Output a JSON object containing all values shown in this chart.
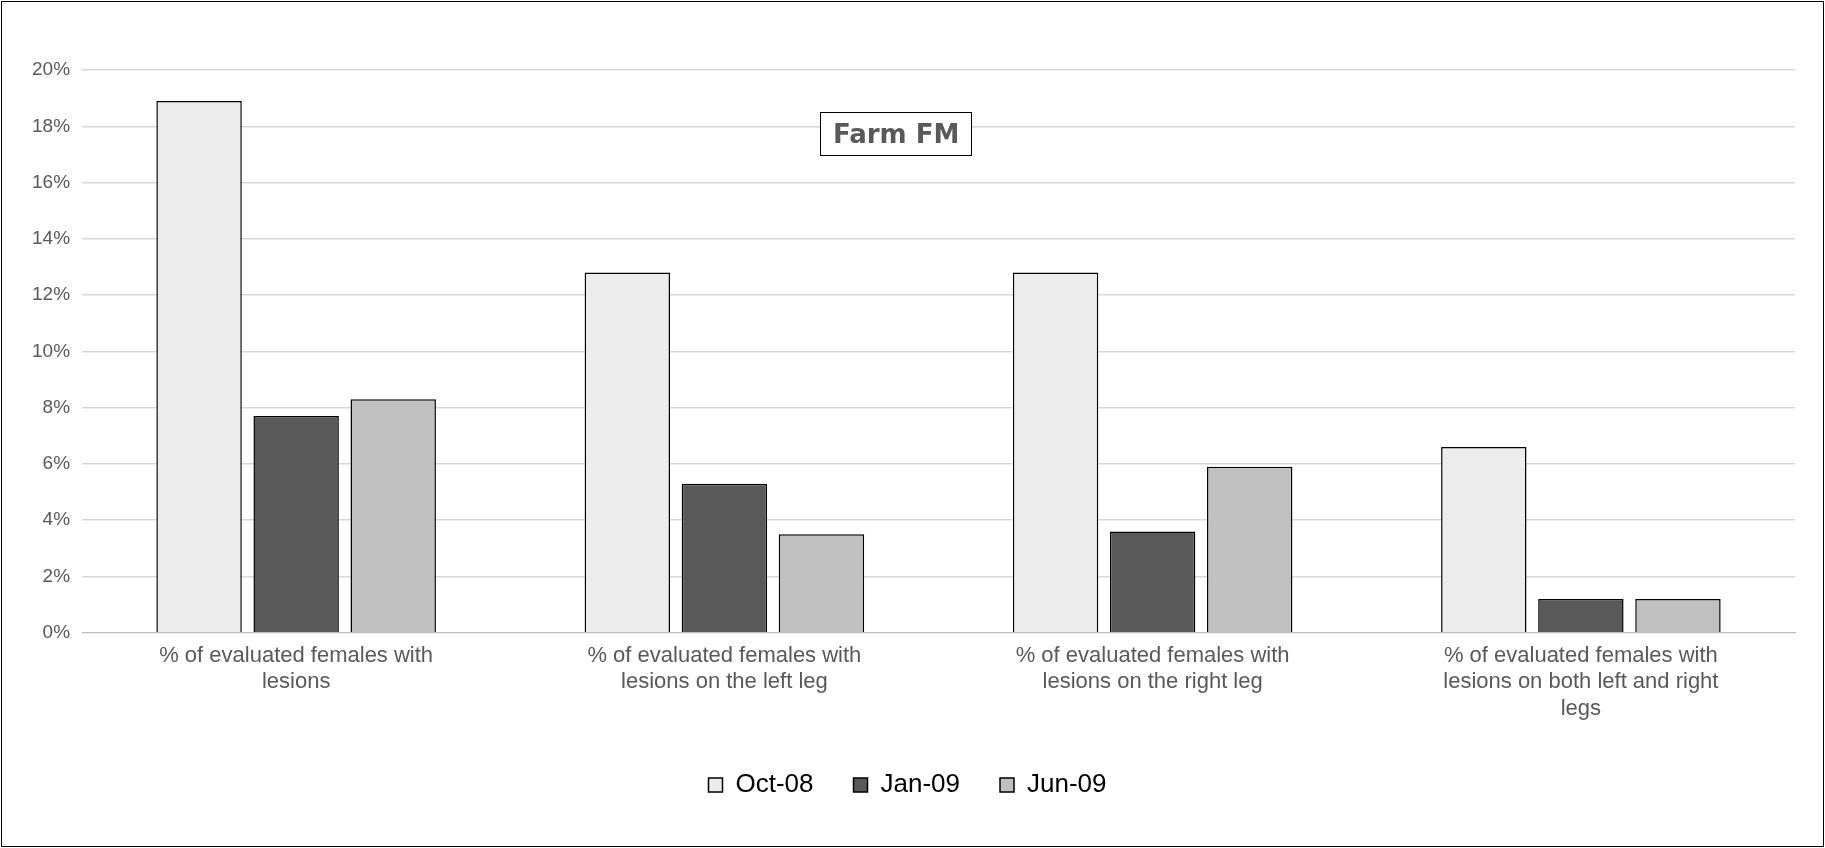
{
  "chart_data": {
    "type": "bar",
    "title": "Farm FM",
    "categories": [
      "% of evaluated females with lesions",
      "% of evaluated females with lesions on the left leg",
      "% of evaluated females with lesions on the right leg",
      "% of evaluated females with lesions on both left and right legs"
    ],
    "series": [
      {
        "name": "Oct-08",
        "color": "#ececec",
        "values": [
          18.9,
          12.8,
          12.8,
          6.6
        ]
      },
      {
        "name": "Jan-09",
        "color": "#595959",
        "values": [
          7.7,
          5.3,
          3.6,
          1.2
        ]
      },
      {
        "name": "Jun-09",
        "color": "#c0c0c0",
        "values": [
          8.3,
          3.5,
          5.9,
          1.2
        ]
      }
    ],
    "ylim": [
      0,
      20
    ],
    "yticks": [
      {
        "value": 0,
        "label": "0%"
      },
      {
        "value": 2,
        "label": "2%"
      },
      {
        "value": 4,
        "label": "4%"
      },
      {
        "value": 6,
        "label": "6%"
      },
      {
        "value": 8,
        "label": "8%"
      },
      {
        "value": 10,
        "label": "10%"
      },
      {
        "value": 12,
        "label": "12%"
      },
      {
        "value": 14,
        "label": "14%"
      },
      {
        "value": 16,
        "label": "16%"
      },
      {
        "value": 18,
        "label": "18%"
      },
      {
        "value": 20,
        "label": "20%"
      }
    ],
    "grid": "y",
    "legend": "bottom"
  }
}
